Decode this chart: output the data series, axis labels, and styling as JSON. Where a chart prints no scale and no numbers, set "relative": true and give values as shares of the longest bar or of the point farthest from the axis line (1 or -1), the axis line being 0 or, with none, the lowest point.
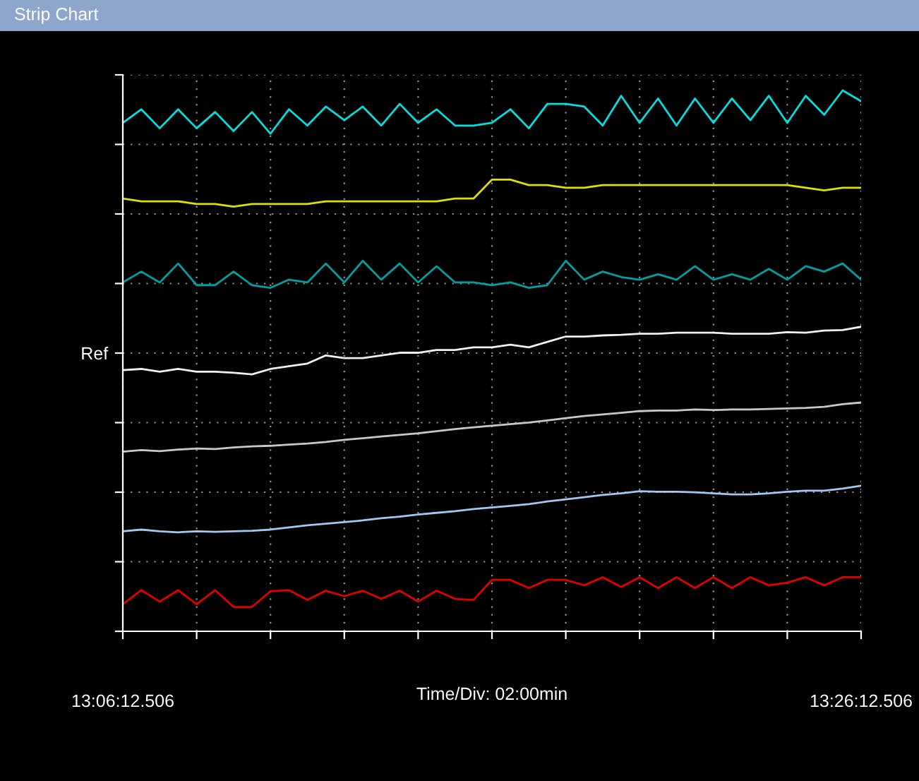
{
  "chart_data": {
    "type": "line",
    "title": "Strip Chart",
    "xlabel": "Time/Div: 02:00min",
    "relative": true,
    "grid": true,
    "marker": "none",
    "line_style": "solid",
    "annotations": [
      "Ref"
    ],
    "categories": [
      "13:06:12.506",
      null,
      null,
      null,
      null,
      null,
      null,
      null,
      null,
      null,
      null,
      null,
      null,
      null,
      null,
      null,
      null,
      null,
      null,
      null,
      null,
      null,
      null,
      null,
      null,
      null,
      null,
      null,
      null,
      null,
      null,
      null,
      null,
      null,
      null,
      null,
      null,
      null,
      null,
      null,
      "13:26:12.506"
    ],
    "series": [
      {
        "color": "#00e0e0",
        "values": [
          0.94,
          0.965,
          0.93,
          0.965,
          0.93,
          0.96,
          0.925,
          0.96,
          0.92,
          0.965,
          0.935,
          0.97,
          0.945,
          0.97,
          0.935,
          0.975,
          0.94,
          0.965,
          0.935,
          0.935,
          0.94,
          0.965,
          0.93,
          0.975,
          0.975,
          0.97,
          0.935,
          0.99,
          0.94,
          0.985,
          0.935,
          0.985,
          0.94,
          0.985,
          0.945,
          0.99,
          0.94,
          0.99,
          0.955,
          1.0,
          0.98
        ]
      },
      {
        "color": "#e0e000",
        "values": [
          0.8,
          0.795,
          0.795,
          0.795,
          0.79,
          0.79,
          0.785,
          0.79,
          0.79,
          0.79,
          0.79,
          0.795,
          0.795,
          0.795,
          0.795,
          0.795,
          0.795,
          0.795,
          0.8,
          0.8,
          0.835,
          0.835,
          0.825,
          0.825,
          0.82,
          0.82,
          0.825,
          0.825,
          0.825,
          0.825,
          0.825,
          0.825,
          0.825,
          0.825,
          0.825,
          0.825,
          0.825,
          0.82,
          0.815,
          0.82,
          0.82
        ]
      },
      {
        "color": "#00a0a0",
        "values": [
          0.645,
          0.665,
          0.645,
          0.68,
          0.64,
          0.64,
          0.665,
          0.64,
          0.635,
          0.65,
          0.645,
          0.68,
          0.645,
          0.685,
          0.65,
          0.68,
          0.645,
          0.675,
          0.645,
          0.645,
          0.64,
          0.645,
          0.635,
          0.64,
          0.685,
          0.65,
          0.665,
          0.655,
          0.65,
          0.66,
          0.65,
          0.675,
          0.65,
          0.66,
          0.65,
          0.67,
          0.65,
          0.675,
          0.665,
          0.68,
          0.65
        ]
      },
      {
        "color": "#f0f0f0",
        "values": [
          0.483,
          0.485,
          0.48,
          0.485,
          0.48,
          0.48,
          0.478,
          0.475,
          0.485,
          0.49,
          0.495,
          0.51,
          0.505,
          0.505,
          0.51,
          0.515,
          0.515,
          0.52,
          0.52,
          0.525,
          0.525,
          0.53,
          0.525,
          0.535,
          0.545,
          0.545,
          0.547,
          0.548,
          0.55,
          0.55,
          0.552,
          0.552,
          0.552,
          0.55,
          0.55,
          0.55,
          0.553,
          0.552,
          0.556,
          0.557,
          0.563
        ]
      },
      {
        "color": "#c8c8c8",
        "values": [
          0.332,
          0.335,
          0.333,
          0.336,
          0.338,
          0.337,
          0.34,
          0.342,
          0.343,
          0.345,
          0.347,
          0.35,
          0.354,
          0.357,
          0.36,
          0.363,
          0.366,
          0.37,
          0.374,
          0.377,
          0.38,
          0.383,
          0.386,
          0.39,
          0.394,
          0.398,
          0.401,
          0.404,
          0.407,
          0.408,
          0.408,
          0.41,
          0.409,
          0.41,
          0.41,
          0.411,
          0.412,
          0.413,
          0.415,
          0.42,
          0.423
        ]
      },
      {
        "color": "#a0c8f0",
        "values": [
          0.185,
          0.188,
          0.185,
          0.183,
          0.185,
          0.184,
          0.185,
          0.186,
          0.188,
          0.192,
          0.196,
          0.199,
          0.202,
          0.205,
          0.209,
          0.212,
          0.216,
          0.219,
          0.222,
          0.226,
          0.229,
          0.232,
          0.235,
          0.24,
          0.244,
          0.248,
          0.252,
          0.255,
          0.259,
          0.258,
          0.258,
          0.257,
          0.255,
          0.253,
          0.253,
          0.255,
          0.258,
          0.26,
          0.26,
          0.264,
          0.269
        ]
      },
      {
        "color": "#e00000",
        "values": [
          0.05,
          0.076,
          0.055,
          0.076,
          0.05,
          0.076,
          0.045,
          0.045,
          0.074,
          0.076,
          0.058,
          0.075,
          0.065,
          0.075,
          0.06,
          0.075,
          0.055,
          0.075,
          0.06,
          0.058,
          0.095,
          0.095,
          0.08,
          0.095,
          0.095,
          0.085,
          0.1,
          0.082,
          0.1,
          0.08,
          0.1,
          0.08,
          0.1,
          0.08,
          0.1,
          0.085,
          0.09,
          0.1,
          0.085,
          0.1,
          0.1
        ]
      }
    ]
  }
}
